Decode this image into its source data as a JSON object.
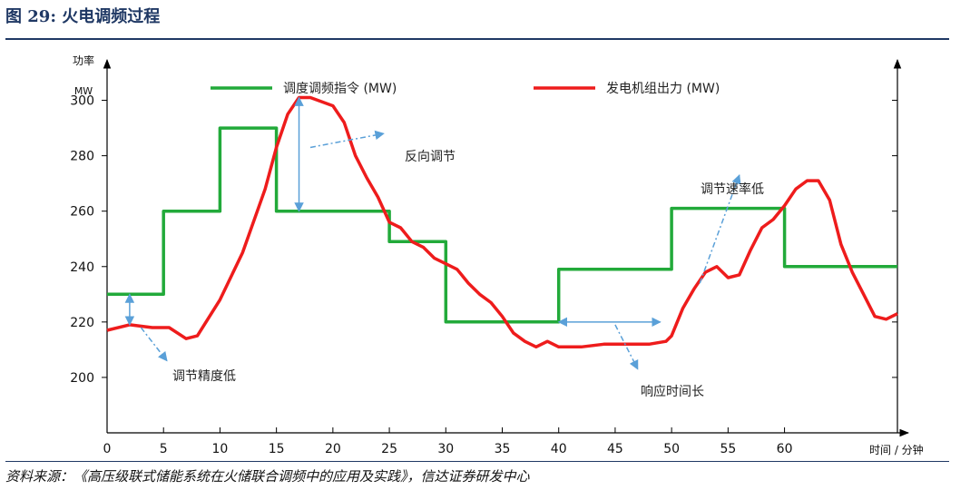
{
  "header": {
    "title": "图 29:  火电调频过程"
  },
  "footer": {
    "source": "资料来源：《高压级联式储能系统在火储联合调频中的应用及实践》，信达证券研发中心"
  },
  "colors": {
    "command": "#22aa3a",
    "output": "#ee1c1c",
    "axis": "#000000",
    "annotation": "#5aa0d8",
    "brand": "#1f3864"
  },
  "chart_data": {
    "type": "line",
    "ylabel": "功率 MW",
    "xlabel": "时间 / 分钟",
    "xlim": [
      0,
      70
    ],
    "ylim": [
      180,
      310
    ],
    "x_ticks": [
      "0",
      "5",
      "10",
      "15",
      "20",
      "25",
      "30",
      "35",
      "40",
      "45",
      "50",
      "55",
      "60"
    ],
    "y_ticks": [
      "200",
      "220",
      "240",
      "260",
      "280",
      "300"
    ],
    "legend_position": "top",
    "grid": false,
    "series": [
      {
        "name": "调度调频指令 (MW)",
        "color": "#22aa3a",
        "style": "step",
        "points": [
          [
            0,
            230
          ],
          [
            5,
            230
          ],
          [
            5,
            260
          ],
          [
            10,
            260
          ],
          [
            10,
            290
          ],
          [
            15,
            290
          ],
          [
            15,
            260
          ],
          [
            25,
            260
          ],
          [
            25,
            249
          ],
          [
            30,
            249
          ],
          [
            30,
            220
          ],
          [
            40,
            220
          ],
          [
            40,
            239
          ],
          [
            50,
            239
          ],
          [
            50,
            261
          ],
          [
            60,
            261
          ],
          [
            60,
            240
          ],
          [
            70,
            240
          ]
        ]
      },
      {
        "name": "发电机组出力 (MW)",
        "color": "#ee1c1c",
        "style": "line",
        "points": [
          [
            0,
            217
          ],
          [
            2,
            219
          ],
          [
            4,
            218
          ],
          [
            5.5,
            218
          ],
          [
            7,
            214
          ],
          [
            8,
            215
          ],
          [
            10,
            228
          ],
          [
            12,
            245
          ],
          [
            14,
            268
          ],
          [
            15,
            283
          ],
          [
            16,
            295
          ],
          [
            17,
            301
          ],
          [
            18,
            301
          ],
          [
            20,
            298
          ],
          [
            21,
            292
          ],
          [
            22,
            280
          ],
          [
            23,
            272
          ],
          [
            24,
            265
          ],
          [
            25,
            256
          ],
          [
            26,
            254
          ],
          [
            27,
            249
          ],
          [
            28,
            247
          ],
          [
            29,
            243
          ],
          [
            30,
            241
          ],
          [
            31,
            239
          ],
          [
            32,
            234
          ],
          [
            33,
            230
          ],
          [
            34,
            227
          ],
          [
            35,
            222
          ],
          [
            36,
            216
          ],
          [
            37,
            213
          ],
          [
            38,
            211
          ],
          [
            39,
            213
          ],
          [
            40,
            211
          ],
          [
            42,
            211
          ],
          [
            44,
            212
          ],
          [
            46,
            212
          ],
          [
            48,
            212
          ],
          [
            49.5,
            213
          ],
          [
            50,
            215
          ],
          [
            51,
            225
          ],
          [
            52,
            232
          ],
          [
            53,
            238
          ],
          [
            54,
            240
          ],
          [
            55,
            236
          ],
          [
            56,
            237
          ],
          [
            57,
            246
          ],
          [
            58,
            254
          ],
          [
            59,
            257
          ],
          [
            60,
            262
          ],
          [
            61,
            268
          ],
          [
            62,
            271
          ],
          [
            63,
            271
          ],
          [
            64,
            264
          ],
          [
            65,
            248
          ],
          [
            66,
            238
          ],
          [
            67,
            230
          ],
          [
            68,
            222
          ],
          [
            69,
            221
          ],
          [
            70,
            223
          ]
        ]
      }
    ],
    "annotations": [
      {
        "text": "反向调节",
        "type": "vertical-arrow",
        "x": 17,
        "y_from": 260,
        "y_to": 301,
        "pointer_from": [
          18,
          283
        ],
        "pointer_to": [
          24.5,
          288
        ]
      },
      {
        "text": "调节精度低",
        "type": "vertical-arrow",
        "x": 2,
        "y_from": 219,
        "y_to": 230,
        "pointer_from": [
          3,
          218
        ],
        "pointer_to": [
          5.3,
          206
        ]
      },
      {
        "text": "响应时间长",
        "type": "horizontal-arrow",
        "y": 220,
        "x_from": 40,
        "x_to": 49,
        "pointer_from": [
          45,
          219
        ],
        "pointer_to": [
          47,
          203
        ]
      },
      {
        "text": "调节速率低",
        "type": "pointer",
        "pointer_from": [
          52.5,
          234
        ],
        "pointer_to": [
          56,
          273
        ]
      }
    ]
  }
}
